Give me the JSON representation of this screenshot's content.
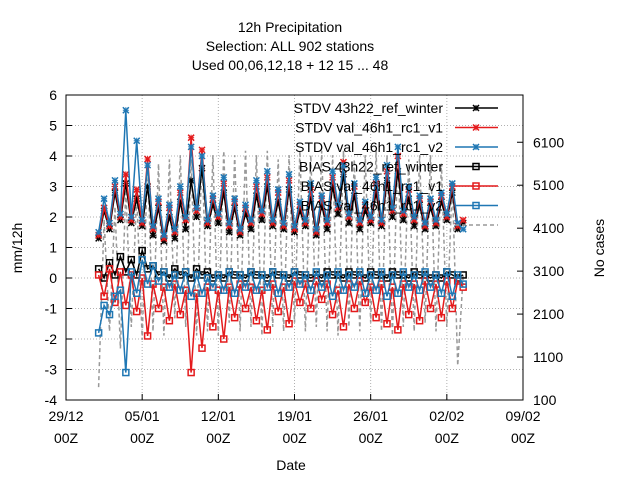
{
  "chart_data": {
    "type": "line",
    "title_lines": [
      "12h Precipitation",
      "Selection: ALL    902 stations",
      "Used  00,06,12,18  + 12 15 ... 48"
    ],
    "xlabel": "Date",
    "ylabel": "mm/12h",
    "y2label": "No cases",
    "xlim": [
      "2012-12-29 00Z",
      "2013-02-09 00Z"
    ],
    "ylim": [
      -4,
      6
    ],
    "y2lim": [
      100,
      7200
    ],
    "x_ticks": [
      {
        "line1": "29/12",
        "line2": "00Z",
        "day": 0
      },
      {
        "line1": "05/01",
        "line2": "00Z",
        "day": 7
      },
      {
        "line1": "12/01",
        "line2": "00Z",
        "day": 14
      },
      {
        "line1": "19/01",
        "line2": "00Z",
        "day": 21
      },
      {
        "line1": "26/01",
        "line2": "00Z",
        "day": 28
      },
      {
        "line1": "02/02",
        "line2": "00Z",
        "day": 35
      },
      {
        "line1": "09/02",
        "line2": "00Z",
        "day": 42
      }
    ],
    "y_ticks": [
      "-4",
      "-3",
      "-2",
      "-1",
      "0",
      "1",
      "2",
      "3",
      "4",
      "5",
      "6"
    ],
    "y2_ticks": [
      {
        "label": "100",
        "value": 100
      },
      {
        "label": "1100",
        "value": 1100
      },
      {
        "label": "2100",
        "value": 2100
      },
      {
        "label": "3100",
        "value": 3100
      },
      {
        "label": "4100",
        "value": 4100
      },
      {
        "label": "5100",
        "value": 5100
      },
      {
        "label": "6100",
        "value": 6100
      }
    ],
    "grid": true,
    "legend_position": "top-right",
    "series": [
      {
        "name": "STDV 43h22_ref_winter",
        "color": "#000000",
        "marker": "x",
        "axis": "y"
      },
      {
        "name": "STDV val_46h1_rc1_v1",
        "color": "#e41a1c",
        "marker": "x",
        "axis": "y"
      },
      {
        "name": "STDV val_46h1_rc1_v2",
        "color": "#1f77b4",
        "marker": "x",
        "axis": "y"
      },
      {
        "name": "BIAS 43h22_ref_winter",
        "color": "#000000",
        "marker": "square",
        "axis": "y"
      },
      {
        "name": "BIAS val_46h1_rc1_v1",
        "color": "#e41a1c",
        "marker": "square",
        "axis": "y"
      },
      {
        "name": "BIAS val_46h1_rc1_v2",
        "color": "#1f77b4",
        "marker": "square",
        "axis": "y"
      },
      {
        "name": "",
        "color": "#999999",
        "marker": "none",
        "dashed": true,
        "axis": "y2"
      }
    ],
    "x_days": [
      3.0,
      3.5,
      4.0,
      4.5,
      5.0,
      5.5,
      6.0,
      6.5,
      7.0,
      7.5,
      8.0,
      8.5,
      9.0,
      9.5,
      10.0,
      10.5,
      11.0,
      11.5,
      12.0,
      12.5,
      13.0,
      13.5,
      14.0,
      14.5,
      15.0,
      15.5,
      16.0,
      16.5,
      17.0,
      17.5,
      18.0,
      18.5,
      19.0,
      19.5,
      20.0,
      20.5,
      21.0,
      21.5,
      22.0,
      22.5,
      23.0,
      23.5,
      24.0,
      24.5,
      25.0,
      25.5,
      26.0,
      26.5,
      27.0,
      27.5,
      28.0,
      28.5,
      29.0,
      29.5,
      30.0,
      30.5,
      31.0,
      31.5,
      32.0,
      32.5,
      33.0,
      33.5,
      34.0,
      34.5,
      35.0,
      35.5,
      36.0,
      36.5
    ],
    "stdv_ref": [
      1.3,
      2.2,
      1.6,
      2.8,
      1.9,
      3.1,
      1.8,
      2.6,
      1.7,
      3.0,
      1.4,
      2.3,
      1.2,
      2.0,
      1.3,
      2.5,
      1.6,
      3.2,
      2.0,
      3.6,
      1.7,
      2.4,
      1.8,
      2.8,
      1.5,
      2.3,
      1.4,
      2.1,
      1.6,
      2.7,
      1.9,
      3.0,
      1.7,
      2.5,
      1.6,
      2.9,
      1.5,
      2.2,
      1.7,
      2.6,
      1.4,
      2.4,
      1.6,
      3.0,
      2.1,
      3.4,
      1.8,
      2.7,
      1.6,
      2.2,
      1.8,
      2.8,
      1.7,
      3.2,
      2.0,
      3.5,
      1.9,
      2.6,
      1.7,
      2.4,
      1.6,
      2.3,
      1.7,
      2.5,
      1.9,
      2.8,
      1.6,
      1.8
    ],
    "stdv_v1": [
      1.4,
      2.3,
      1.7,
      3.0,
      2.0,
      3.4,
      1.9,
      2.9,
      1.8,
      3.9,
      1.6,
      2.5,
      1.3,
      2.3,
      1.5,
      2.8,
      1.9,
      4.6,
      2.2,
      4.2,
      1.8,
      2.6,
      2.0,
      3.1,
      1.7,
      2.5,
      1.5,
      2.3,
      1.8,
      3.0,
      2.1,
      3.3,
      1.8,
      2.8,
      1.7,
      3.2,
      1.6,
      2.4,
      1.8,
      2.9,
      1.5,
      2.6,
      1.8,
      3.3,
      2.3,
      3.8,
      2.0,
      3.0,
      1.8,
      2.4,
      1.9,
      3.1,
      1.8,
      3.5,
      2.2,
      4.0,
      2.1,
      2.9,
      1.9,
      2.6,
      1.7,
      2.5,
      1.8,
      2.7,
      2.0,
      3.0,
      1.7,
      1.9
    ],
    "stdv_v2": [
      1.5,
      2.6,
      1.8,
      3.2,
      2.1,
      5.5,
      2.0,
      4.5,
      1.9,
      3.7,
      1.7,
      2.6,
      1.4,
      2.4,
      1.6,
      3.0,
      2.0,
      4.3,
      2.3,
      4.0,
      1.9,
      2.7,
      2.1,
      3.3,
      1.8,
      2.6,
      1.6,
      2.4,
      1.9,
      3.2,
      2.2,
      3.5,
      1.9,
      2.9,
      1.8,
      3.4,
      1.7,
      2.5,
      1.9,
      3.1,
      1.6,
      2.7,
      1.9,
      3.5,
      2.4,
      3.7,
      2.1,
      3.1,
      1.9,
      2.5,
      2.0,
      3.3,
      1.9,
      3.7,
      2.3,
      4.3,
      2.2,
      3.0,
      2.0,
      2.7,
      1.8,
      2.6,
      1.9,
      2.8,
      2.1,
      3.1,
      1.8,
      1.6
    ],
    "bias_ref": [
      0.3,
      0.0,
      0.5,
      0.1,
      0.7,
      0.2,
      0.6,
      0.1,
      0.9,
      0.3,
      0.4,
      0.1,
      0.2,
      0.0,
      0.3,
      0.1,
      0.2,
      0.0,
      0.3,
      0.1,
      0.2,
      0.0,
      0.1,
      0.0,
      0.2,
      0.1,
      0.1,
      0.0,
      0.2,
      0.1,
      0.1,
      0.0,
      0.2,
      0.1,
      0.1,
      0.0,
      0.2,
      0.1,
      0.1,
      0.0,
      0.1,
      0.0,
      0.2,
      0.1,
      0.1,
      0.0,
      0.2,
      0.1,
      0.1,
      0.0,
      0.2,
      0.1,
      0.1,
      0.0,
      0.2,
      0.1,
      0.1,
      0.0,
      0.2,
      0.1,
      0.1,
      0.0,
      0.1,
      0.0,
      0.2,
      0.1,
      0.0,
      0.1
    ],
    "bias_v1": [
      0.1,
      -0.6,
      0.3,
      -0.8,
      0.2,
      -0.9,
      0.1,
      -1.1,
      0.0,
      -1.9,
      -0.2,
      -1.0,
      -0.3,
      -1.4,
      -0.2,
      -1.2,
      -0.4,
      -3.1,
      -0.5,
      -2.3,
      -0.3,
      -1.6,
      -0.4,
      -2.0,
      -0.3,
      -1.3,
      -0.2,
      -1.0,
      -0.3,
      -1.4,
      -0.4,
      -1.7,
      -0.2,
      -1.1,
      -0.3,
      -1.5,
      -0.1,
      -0.8,
      -0.2,
      -1.0,
      -0.1,
      -0.7,
      -0.2,
      -1.2,
      -0.4,
      -1.6,
      -0.2,
      -1.0,
      -0.1,
      -0.8,
      -0.3,
      -1.3,
      -0.2,
      -1.5,
      -0.3,
      -1.7,
      -0.2,
      -1.2,
      -0.2,
      -1.4,
      -0.1,
      -1.0,
      -0.2,
      -1.3,
      -0.1,
      -1.0,
      -0.1,
      -0.3
    ],
    "bias_v2": [
      -1.8,
      -0.9,
      -1.2,
      -0.6,
      -0.4,
      -3.1,
      0.2,
      -0.5,
      0.6,
      -0.2,
      0.4,
      -0.1,
      0.2,
      -0.3,
      0.1,
      -0.4,
      0.2,
      -0.6,
      0.1,
      -0.5,
      0.0,
      -0.3,
      0.1,
      -0.4,
      0.2,
      -0.5,
      0.1,
      -0.3,
      0.2,
      -0.4,
      0.1,
      -0.3,
      0.2,
      -0.5,
      0.1,
      -0.3,
      0.2,
      -0.2,
      0.1,
      -0.4,
      0.2,
      -0.3,
      0.1,
      -0.6,
      0.2,
      -0.4,
      0.1,
      -0.3,
      0.2,
      -0.5,
      0.1,
      -0.4,
      0.2,
      -0.6,
      0.1,
      -0.5,
      0.2,
      -0.3,
      0.1,
      -0.4,
      0.2,
      -0.3,
      0.1,
      -0.5,
      0.2,
      -0.6,
      0.1,
      -0.2
    ],
    "cases": [
      400,
      4300,
      1700,
      4600,
      1300,
      5000,
      1800,
      4900,
      1500,
      5700,
      1700,
      5600,
      1600,
      5700,
      2000,
      5800,
      1800,
      5700,
      1600,
      5900,
      1700,
      5800,
      1600,
      5900,
      1900,
      5800,
      1700,
      5900,
      1800,
      5800,
      1600,
      5900,
      1800,
      5700,
      1700,
      5800,
      1900,
      5900,
      1700,
      5800,
      1800,
      5900,
      1700,
      5800,
      1600,
      5900,
      1800,
      5700,
      1700,
      5800,
      1900,
      5900,
      1700,
      5800,
      1600,
      5900,
      1800,
      5700,
      1700,
      5800,
      1900,
      5800,
      1700,
      5600,
      1800,
      5200,
      900,
      3000
    ]
  }
}
